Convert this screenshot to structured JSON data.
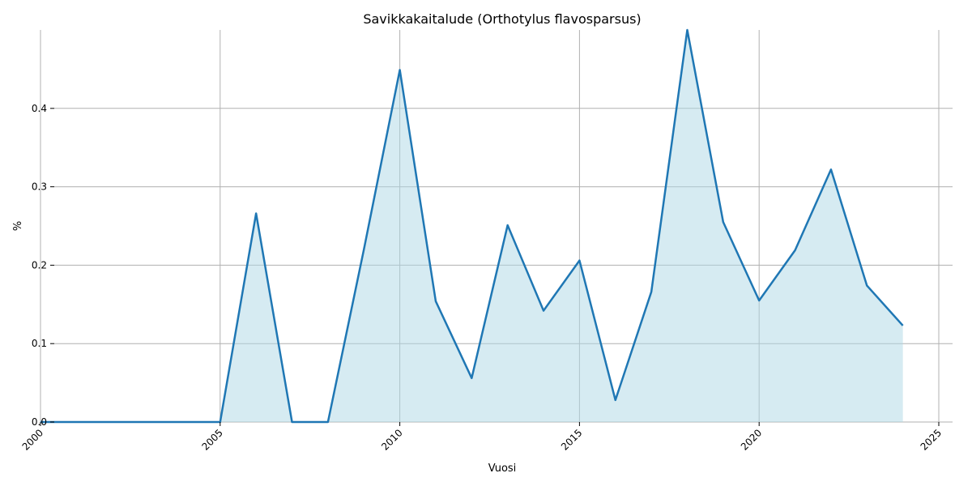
{
  "chart_data": {
    "type": "area",
    "title": "Savikkakaitalude (Orthotylus flavosparsus)",
    "xlabel": "Vuosi",
    "ylabel": "%",
    "xlim": [
      2000,
      2025
    ],
    "ylim": [
      0,
      0.5
    ],
    "xticks": [
      2000,
      2005,
      2010,
      2015,
      2020,
      2025
    ],
    "yticks": [
      0.0,
      0.1,
      0.2,
      0.3,
      0.4
    ],
    "ytick_labels": [
      "0.0",
      "0.1",
      "0.2",
      "0.3",
      "0.4"
    ],
    "grid": true,
    "x": [
      2000,
      2001,
      2002,
      2003,
      2004,
      2005,
      2006,
      2007,
      2008,
      2009,
      2010,
      2011,
      2012,
      2013,
      2014,
      2015,
      2016,
      2017,
      2018,
      2019,
      2020,
      2021,
      2022,
      2023,
      2024
    ],
    "y": [
      0,
      0,
      0,
      0,
      0,
      0,
      0.266,
      0,
      0,
      0.22,
      0.449,
      0.154,
      0.056,
      0.251,
      0.142,
      0.206,
      0.028,
      0.166,
      0.5,
      0.255,
      0.155,
      0.219,
      0.322,
      0.174,
      0.123
    ],
    "colors": {
      "line": "#1f77b4",
      "fill": "#add8e6",
      "grid": "#b0b0b0"
    }
  }
}
